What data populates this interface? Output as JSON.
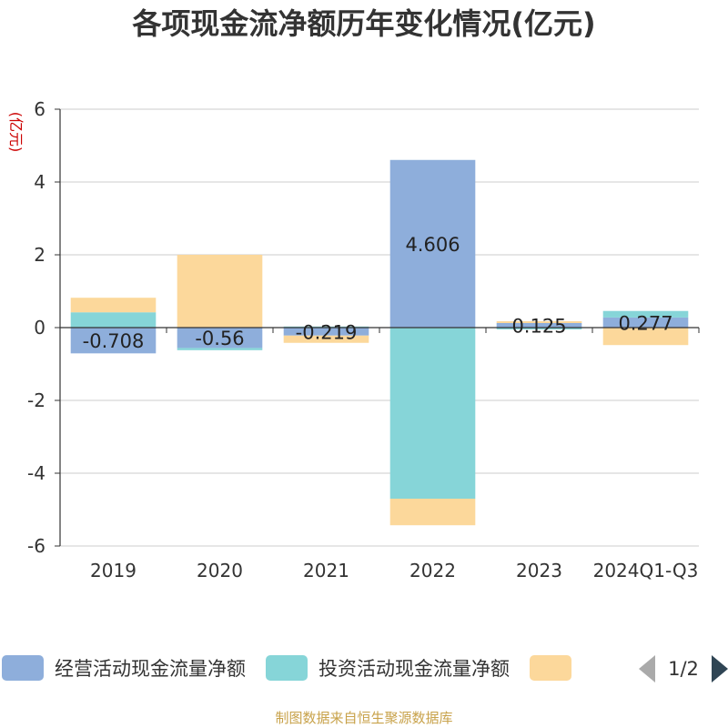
{
  "chart_data": {
    "type": "bar",
    "title": "各项现金流净额历年变化情况(亿元)",
    "ylabel": "(亿元)",
    "xlabel": "",
    "categories": [
      "2019",
      "2020",
      "2021",
      "2022",
      "2023",
      "2024Q1-Q3"
    ],
    "ylim": [
      -6,
      6
    ],
    "yticks": [
      6,
      4,
      2,
      0,
      -2,
      -4,
      -6
    ],
    "grid": true,
    "stacked": true,
    "series": [
      {
        "name": "经营活动现金流量净额",
        "color": "#8eaedb",
        "values": [
          -0.708,
          -0.56,
          -0.219,
          4.606,
          0.125,
          0.277
        ]
      },
      {
        "name": "投资活动现金流量净额",
        "color": "#86d5d8",
        "values": [
          0.42,
          -0.06,
          0.03,
          -4.7,
          -0.05,
          0.18
        ]
      },
      {
        "name": "",
        "color": "#fcd89b",
        "values": [
          0.4,
          2.0,
          -0.2,
          -0.73,
          0.05,
          -0.48
        ]
      }
    ],
    "data_labels": [
      "-0.708",
      "-0.56",
      "-0.219",
      "4.606",
      "0.125",
      "0.277"
    ],
    "legend": {
      "placement": "bottom",
      "page": "1/2"
    }
  },
  "source_note": "制图数据来自恒生聚源数据库"
}
